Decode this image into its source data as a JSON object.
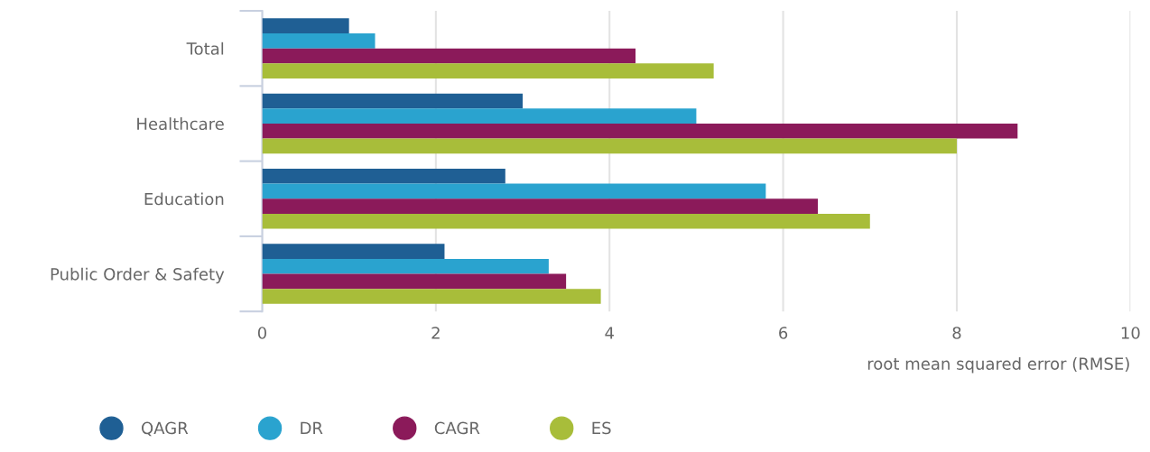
{
  "chart_data": {
    "type": "bar",
    "orientation": "horizontal",
    "xlabel": "root mean squared error (RMSE)",
    "categories": [
      "Total",
      "Healthcare",
      "Education",
      "Public Order & Safety"
    ],
    "series": [
      {
        "name": "QAGR",
        "color": "#1f5f94",
        "values": [
          1.0,
          3.0,
          2.8,
          2.1
        ]
      },
      {
        "name": "DR",
        "color": "#2aa3cf",
        "values": [
          1.3,
          5.0,
          5.8,
          3.3
        ]
      },
      {
        "name": "CAGR",
        "color": "#8b1a5a",
        "values": [
          4.3,
          8.7,
          6.4,
          3.5
        ]
      },
      {
        "name": "ES",
        "color": "#a8bd3a",
        "values": [
          5.2,
          8.0,
          7.0,
          3.9
        ]
      }
    ],
    "xlim": [
      0,
      10
    ],
    "xticks": [
      0,
      2,
      4,
      6,
      8,
      10
    ],
    "grid": "x",
    "legend": "bottom left"
  }
}
